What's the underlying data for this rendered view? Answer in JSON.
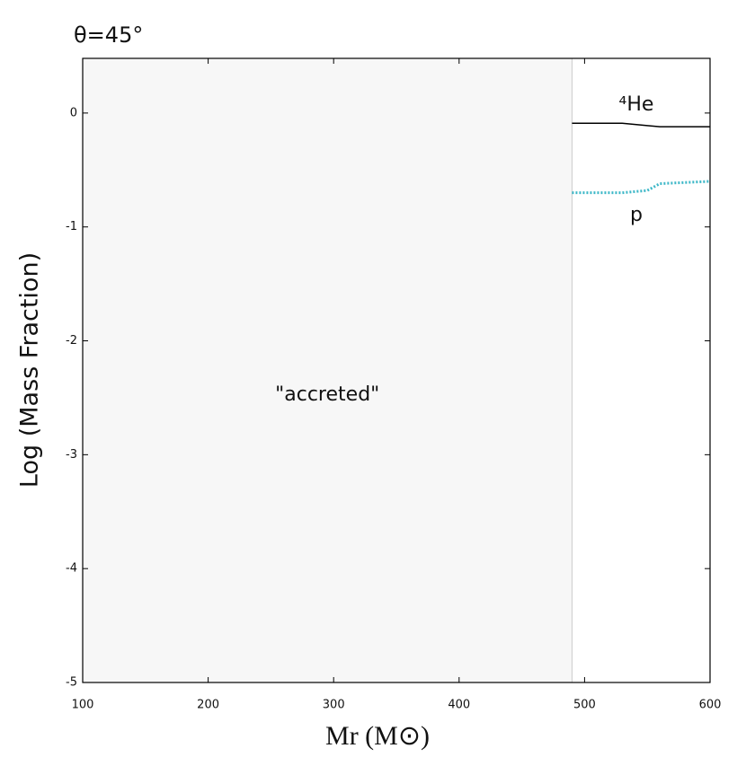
{
  "chart_data": {
    "type": "line",
    "title": "θ=45°",
    "xlabel": "Mr (M⊙)",
    "ylabel": "Log (Mass Fraction)",
    "x": [
      490,
      530,
      550,
      560,
      600
    ],
    "series": [
      {
        "name": "⁴He",
        "color": "#000000",
        "dash": "solid",
        "values": [
          -0.09,
          -0.09,
          -0.11,
          -0.12,
          -0.12
        ]
      },
      {
        "name": "p",
        "color": "#3fb8c8",
        "dash": "dotted",
        "values": [
          -0.7,
          -0.7,
          -0.68,
          -0.62,
          -0.6
        ]
      }
    ],
    "shade": {
      "xlim": [
        100,
        490
      ],
      "label": "\"accreted\"",
      "color": "#f7f7f7"
    },
    "xlim": [
      100,
      600
    ],
    "xticks": [
      100,
      200,
      300,
      400,
      500,
      600
    ],
    "ylim": [
      -5,
      0.48
    ],
    "yticks": [
      0,
      -1,
      -2,
      -3,
      -4,
      -5
    ]
  }
}
